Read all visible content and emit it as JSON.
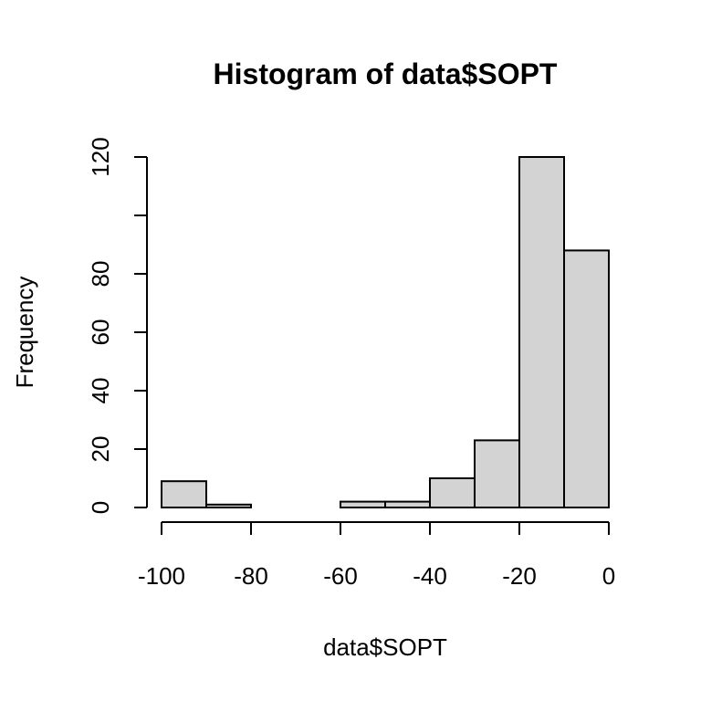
{
  "chart_data": {
    "type": "bar",
    "title": "Histogram of data$SOPT",
    "xlabel": "data$SOPT",
    "ylabel": "Frequency",
    "bin_edges": [
      -100,
      -90,
      -80,
      -70,
      -60,
      -50,
      -40,
      -30,
      -20,
      -10,
      0
    ],
    "values": [
      9,
      1,
      0,
      0,
      2,
      2,
      10,
      23,
      120,
      88
    ],
    "xlim": [
      -100,
      0
    ],
    "ylim": [
      0,
      120
    ],
    "x_ticks": [
      -100,
      -80,
      -60,
      -40,
      -20,
      0
    ],
    "y_ticks": [
      0,
      20,
      40,
      60,
      80,
      100,
      120
    ],
    "x_tick_labels": [
      "-100",
      "-80",
      "-60",
      "-40",
      "-20",
      "0"
    ],
    "y_tick_labels": [
      "0",
      "20",
      "40",
      "60",
      "80",
      "",
      "120"
    ],
    "bar_fill": "#d3d3d3",
    "bar_stroke": "#000000",
    "grid": false,
    "legend": "none"
  }
}
